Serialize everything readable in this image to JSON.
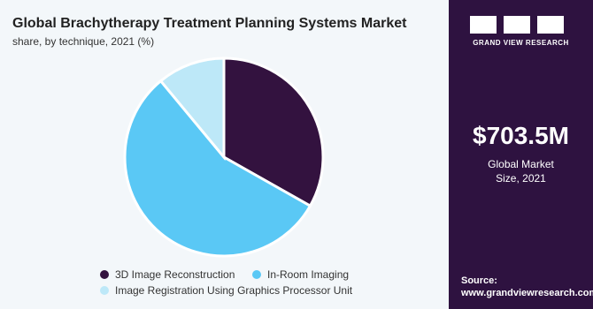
{
  "chart_data": {
    "type": "pie",
    "title": "Global Brachytherapy Treatment Planning Systems Market",
    "subtitle": "share, by technique, 2021 (%)",
    "categories": [
      "3D Image Reconstruction",
      "In-Room Imaging",
      "Image Registration Using Graphics Processor Unit"
    ],
    "values": [
      33.2,
      55.8,
      11.0
    ],
    "colors": [
      "#33123f",
      "#5ac8f5",
      "#bde8f8"
    ]
  },
  "sidebar": {
    "brand": "GRAND VIEW RESEARCH",
    "market_value": "$703.5M",
    "market_label": "Global Market Size, 2021",
    "source_label": "Source:",
    "source_url": "www.grandviewresearch.com"
  }
}
